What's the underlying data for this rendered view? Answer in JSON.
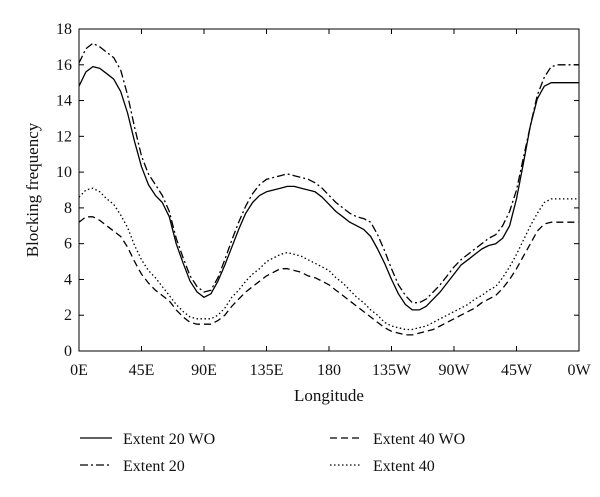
{
  "chart_data": {
    "type": "line",
    "title": "",
    "xlabel": "Longitude",
    "ylabel": "Blocking frequency",
    "x_ticks": [
      "0E",
      "45E",
      "90E",
      "135E",
      "180",
      "135W",
      "90W",
      "45W",
      "0W"
    ],
    "xlim": [
      0,
      360
    ],
    "y_ticks": [
      "0",
      "2",
      "4",
      "6",
      "8",
      "10",
      "12",
      "14",
      "16",
      "18"
    ],
    "ylim": [
      0,
      18
    ],
    "grid": false,
    "legend_position": "bottom",
    "series": [
      {
        "name": "Extent 20 WO",
        "style": "solid",
        "x": [
          0,
          5,
          10,
          15,
          20,
          25,
          30,
          35,
          40,
          45,
          50,
          55,
          60,
          65,
          70,
          75,
          80,
          85,
          90,
          95,
          100,
          105,
          110,
          115,
          120,
          125,
          130,
          135,
          140,
          145,
          150,
          155,
          160,
          165,
          170,
          175,
          180,
          185,
          190,
          195,
          200,
          205,
          210,
          215,
          220,
          225,
          230,
          235,
          240,
          245,
          250,
          255,
          260,
          265,
          270,
          275,
          280,
          285,
          290,
          295,
          300,
          305,
          310,
          315,
          320,
          325,
          330,
          335,
          340,
          345,
          350,
          355,
          360
        ],
        "values": [
          14.8,
          15.6,
          15.9,
          15.8,
          15.5,
          15.2,
          14.5,
          13.3,
          11.7,
          10.3,
          9.3,
          8.7,
          8.3,
          7.5,
          6.0,
          4.9,
          3.9,
          3.3,
          3.0,
          3.2,
          3.9,
          4.8,
          5.8,
          6.8,
          7.7,
          8.3,
          8.7,
          8.9,
          9.0,
          9.1,
          9.2,
          9.2,
          9.1,
          9.0,
          8.9,
          8.6,
          8.2,
          7.8,
          7.5,
          7.2,
          7.0,
          6.8,
          6.4,
          5.7,
          4.9,
          4.0,
          3.2,
          2.6,
          2.3,
          2.3,
          2.5,
          2.9,
          3.3,
          3.8,
          4.3,
          4.8,
          5.1,
          5.4,
          5.7,
          5.9,
          6.0,
          6.3,
          7.0,
          8.5,
          10.5,
          12.6,
          14.1,
          14.8,
          15.0,
          15.0,
          15.0,
          15.0,
          15.0
        ]
      },
      {
        "name": "Extent 20",
        "style": "dashdot",
        "x": [
          0,
          5,
          10,
          15,
          20,
          25,
          30,
          35,
          40,
          45,
          50,
          55,
          60,
          65,
          70,
          75,
          80,
          85,
          90,
          95,
          100,
          105,
          110,
          115,
          120,
          125,
          130,
          135,
          140,
          145,
          150,
          155,
          160,
          165,
          170,
          175,
          180,
          185,
          190,
          195,
          200,
          205,
          210,
          215,
          220,
          225,
          230,
          235,
          240,
          245,
          250,
          255,
          260,
          265,
          270,
          275,
          280,
          285,
          290,
          295,
          300,
          305,
          310,
          315,
          320,
          325,
          330,
          335,
          340,
          345,
          350,
          355,
          360
        ],
        "values": [
          16.1,
          16.9,
          17.2,
          17.0,
          16.7,
          16.4,
          15.7,
          14.3,
          12.5,
          10.9,
          9.9,
          9.3,
          8.7,
          7.8,
          6.3,
          5.2,
          4.2,
          3.6,
          3.3,
          3.4,
          4.1,
          5.1,
          6.2,
          7.2,
          8.1,
          8.8,
          9.3,
          9.6,
          9.7,
          9.8,
          9.9,
          9.8,
          9.7,
          9.6,
          9.4,
          9.1,
          8.7,
          8.3,
          8.0,
          7.7,
          7.5,
          7.4,
          7.2,
          6.5,
          5.6,
          4.6,
          3.7,
          3.1,
          2.7,
          2.7,
          2.9,
          3.3,
          3.7,
          4.2,
          4.7,
          5.1,
          5.4,
          5.7,
          6.0,
          6.3,
          6.5,
          7.0,
          7.8,
          9.0,
          10.8,
          12.6,
          14.3,
          15.3,
          15.9,
          16.0,
          16.0,
          16.0,
          16.0
        ]
      },
      {
        "name": "Extent 40 WO",
        "style": "dashed",
        "x": [
          0,
          5,
          10,
          15,
          20,
          25,
          30,
          35,
          40,
          45,
          50,
          55,
          60,
          65,
          70,
          75,
          80,
          85,
          90,
          95,
          100,
          105,
          110,
          115,
          120,
          125,
          130,
          135,
          140,
          145,
          150,
          155,
          160,
          165,
          170,
          175,
          180,
          185,
          190,
          195,
          200,
          205,
          210,
          215,
          220,
          225,
          230,
          235,
          240,
          245,
          250,
          255,
          260,
          265,
          270,
          275,
          280,
          285,
          290,
          295,
          300,
          305,
          310,
          315,
          320,
          325,
          330,
          335,
          340,
          345,
          350,
          355,
          360
        ],
        "values": [
          7.2,
          7.5,
          7.5,
          7.3,
          7.0,
          6.7,
          6.4,
          5.8,
          5.0,
          4.3,
          3.8,
          3.4,
          3.1,
          2.8,
          2.3,
          1.9,
          1.6,
          1.5,
          1.5,
          1.5,
          1.7,
          2.0,
          2.5,
          2.9,
          3.3,
          3.6,
          3.9,
          4.2,
          4.4,
          4.6,
          4.6,
          4.5,
          4.4,
          4.2,
          4.1,
          3.9,
          3.7,
          3.4,
          3.1,
          2.8,
          2.5,
          2.2,
          1.9,
          1.6,
          1.3,
          1.1,
          1.0,
          0.9,
          0.9,
          1.0,
          1.1,
          1.2,
          1.4,
          1.6,
          1.8,
          2.0,
          2.2,
          2.4,
          2.7,
          2.9,
          3.1,
          3.5,
          4.0,
          4.6,
          5.3,
          6.0,
          6.7,
          7.1,
          7.2,
          7.2,
          7.2,
          7.2,
          7.2
        ]
      },
      {
        "name": "Extent 40",
        "style": "dotted",
        "x": [
          0,
          5,
          10,
          15,
          20,
          25,
          30,
          35,
          40,
          45,
          50,
          55,
          60,
          65,
          70,
          75,
          80,
          85,
          90,
          95,
          100,
          105,
          110,
          115,
          120,
          125,
          130,
          135,
          140,
          145,
          150,
          155,
          160,
          165,
          170,
          175,
          180,
          185,
          190,
          195,
          200,
          205,
          210,
          215,
          220,
          225,
          230,
          235,
          240,
          245,
          250,
          255,
          260,
          265,
          270,
          275,
          280,
          285,
          290,
          295,
          300,
          305,
          310,
          315,
          320,
          325,
          330,
          335,
          340,
          345,
          350,
          355,
          360
        ],
        "values": [
          8.6,
          9.0,
          9.1,
          8.9,
          8.5,
          8.2,
          7.6,
          6.9,
          5.9,
          5.1,
          4.5,
          4.1,
          3.6,
          3.1,
          2.6,
          2.2,
          1.9,
          1.8,
          1.8,
          1.8,
          2.0,
          2.4,
          3.0,
          3.4,
          3.9,
          4.3,
          4.6,
          5.0,
          5.2,
          5.4,
          5.5,
          5.4,
          5.3,
          5.1,
          4.9,
          4.7,
          4.5,
          4.1,
          3.8,
          3.4,
          3.0,
          2.7,
          2.3,
          2.0,
          1.6,
          1.4,
          1.3,
          1.2,
          1.2,
          1.3,
          1.4,
          1.6,
          1.8,
          2.0,
          2.2,
          2.4,
          2.6,
          2.9,
          3.1,
          3.4,
          3.6,
          4.1,
          4.7,
          5.4,
          6.2,
          7.0,
          7.7,
          8.3,
          8.5,
          8.5,
          8.5,
          8.5,
          8.5
        ]
      }
    ]
  }
}
